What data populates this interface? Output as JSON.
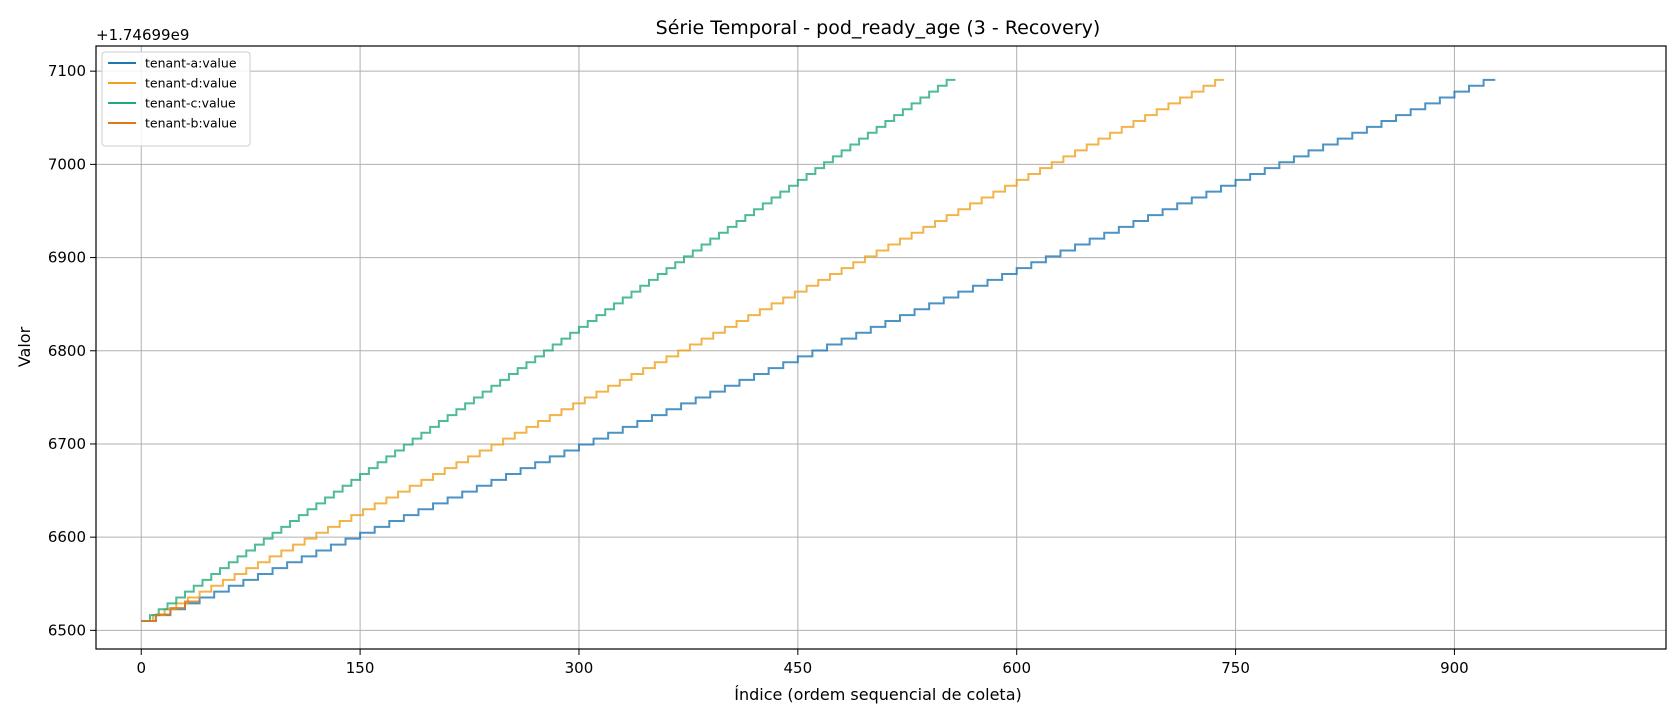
{
  "chart_data": {
    "type": "line",
    "title": "Série Temporal - pod_ready_age (3 - Recovery)",
    "xlabel": "Índice (ordem sequencial de coleta)",
    "ylabel": "Valor",
    "offset_text": "+1.74699e9",
    "xlim": [
      -31,
      1045
    ],
    "ylim": [
      6480,
      7127
    ],
    "xticks": [
      0,
      150,
      300,
      450,
      600,
      750,
      900
    ],
    "yticks": [
      6500,
      6600,
      6700,
      6800,
      6900,
      7000,
      7100
    ],
    "grid": true,
    "legend_position": "top-left",
    "series": [
      {
        "name": "tenant-a:value",
        "color": "#1f77b4",
        "x_start": 0,
        "x_end": 928,
        "y_start": 6510,
        "y_end": 7097,
        "step": 10
      },
      {
        "name": "tenant-d:value",
        "color": "#f0a01e",
        "x_start": 0,
        "x_end": 742,
        "y_start": 6510,
        "y_end": 7097,
        "step": 8
      },
      {
        "name": "tenant-c:value",
        "color": "#20aa78",
        "x_start": 0,
        "x_end": 558,
        "y_start": 6510,
        "y_end": 7097,
        "step": 6
      },
      {
        "name": "tenant-b:value",
        "color": "#e07818",
        "x_start": 0,
        "x_end": 40,
        "y_start": 6510,
        "y_end": 6538,
        "step": 10
      }
    ]
  }
}
